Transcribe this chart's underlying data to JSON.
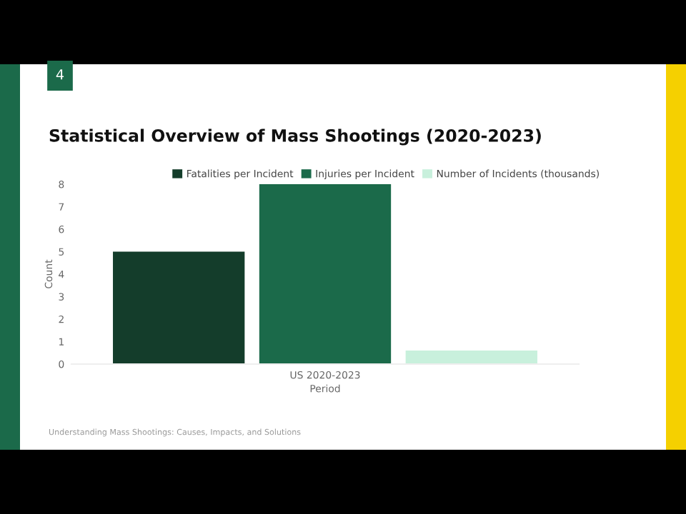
{
  "chart_data": {
    "type": "bar",
    "title": "Statistical Overview of Mass Shootings (2020-2023)",
    "xlabel": "Period",
    "ylabel": "Count",
    "categories": [
      "US 2020-2023"
    ],
    "series": [
      {
        "name": "Fatalities per Incident",
        "color": "#143d2b",
        "values": [
          5
        ]
      },
      {
        "name": "Injuries per Incident",
        "color": "#1b6a4a",
        "values": [
          8
        ]
      },
      {
        "name": "Number of Incidents (thousands)",
        "color": "#c8f0dc",
        "values": [
          0.6
        ]
      }
    ],
    "ylim": [
      0,
      8
    ],
    "yticks": [
      0,
      1,
      2,
      3,
      4,
      5,
      6,
      7,
      8
    ],
    "grid": false,
    "legend": "top",
    "annotations": [
      "4",
      "Understanding Mass Shootings: Causes, Impacts, and Solutions"
    ]
  }
}
